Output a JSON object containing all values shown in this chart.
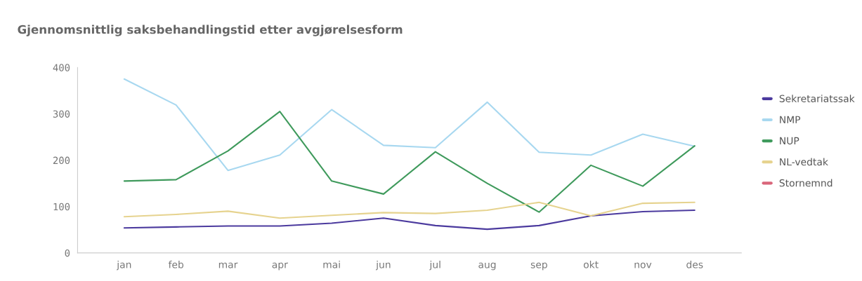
{
  "chart_data": {
    "type": "line",
    "title": "Gjennomsnittlig saksbehandlingstid etter avgjørelsesform",
    "categories": [
      "jan",
      "feb",
      "mar",
      "apr",
      "mai",
      "jun",
      "jul",
      "aug",
      "sep",
      "okt",
      "nov",
      "des"
    ],
    "series": [
      {
        "name": "Sekretariatssak",
        "color": "#4b3a9e",
        "values": [
          54,
          56,
          58,
          58,
          64,
          75,
          59,
          51,
          59,
          80,
          89,
          92
        ]
      },
      {
        "name": "NMP",
        "color": "#a8d8f0",
        "values": [
          375,
          319,
          178,
          211,
          309,
          232,
          227,
          325,
          217,
          211,
          256,
          230
        ]
      },
      {
        "name": "NUP",
        "color": "#3f9a5c",
        "values": [
          155,
          158,
          220,
          305,
          155,
          127,
          218,
          150,
          88,
          189,
          144,
          231
        ]
      },
      {
        "name": "NL-vedtak",
        "color": "#e6d38f",
        "values": [
          78,
          83,
          90,
          75,
          81,
          87,
          85,
          92,
          109,
          80,
          107,
          109
        ]
      },
      {
        "name": "Stornemnd",
        "color": "#d9667a",
        "values": [
          null,
          null,
          null,
          null,
          null,
          null,
          null,
          null,
          null,
          null,
          null,
          null
        ]
      }
    ],
    "ylim": [
      0,
      400
    ],
    "yticks": [
      0,
      100,
      200,
      300,
      400
    ],
    "grid": false,
    "legend": "right",
    "marker": "none",
    "line_style": "solid"
  }
}
